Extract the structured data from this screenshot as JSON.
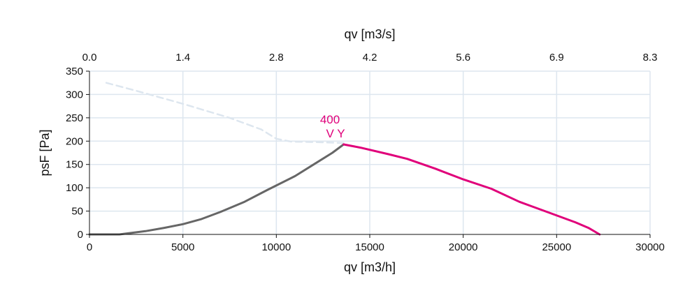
{
  "chart_data": {
    "type": "line",
    "xlabel": "qv [m3/h]",
    "x2label": "qv [m3/s]",
    "ylabel": "psF [Pa]",
    "xlim": [
      0,
      30000
    ],
    "ylim": [
      0,
      350
    ],
    "x_ticks": [
      "0",
      "5000",
      "10000",
      "15000",
      "20000",
      "25000",
      "30000"
    ],
    "x2_ticks": [
      "0.0",
      "1.4",
      "2.8",
      "4.2",
      "5.6",
      "6.9",
      "8.3"
    ],
    "y_ticks": [
      "0",
      "50",
      "100",
      "150",
      "200",
      "250",
      "300",
      "350"
    ],
    "grid": true,
    "colors": {
      "upper_curve": "#dde6ef",
      "system_curve": "#666666",
      "operating_curve": "#e0007a",
      "grid": "#dde6ef",
      "annotation": "#e0007a"
    },
    "annotation": {
      "line1": "400",
      "line2": "V Y",
      "x": 13600,
      "y": 193
    },
    "series": [
      {
        "style": "dashed",
        "color": "#dde6ef",
        "points": [
          [
            900,
            325
          ],
          [
            2500,
            308
          ],
          [
            5000,
            280
          ],
          [
            7500,
            250
          ],
          [
            9200,
            225
          ],
          [
            10000,
            205
          ],
          [
            10800,
            199
          ],
          [
            12000,
            198
          ],
          [
            13600,
            196
          ]
        ]
      },
      {
        "style": "solid",
        "color": "#666666",
        "points": [
          [
            0,
            0
          ],
          [
            1600,
            0
          ],
          [
            3000,
            7
          ],
          [
            4000,
            14
          ],
          [
            5000,
            22
          ],
          [
            6000,
            33
          ],
          [
            7000,
            48
          ],
          [
            8300,
            70
          ],
          [
            9500,
            95
          ],
          [
            11000,
            125
          ],
          [
            12000,
            150
          ],
          [
            13000,
            175
          ],
          [
            13600,
            193
          ]
        ]
      },
      {
        "style": "solid",
        "color": "#e0007a",
        "points": [
          [
            13600,
            193
          ],
          [
            14500,
            186
          ],
          [
            16000,
            172
          ],
          [
            17000,
            162
          ],
          [
            18500,
            141
          ],
          [
            20000,
            118
          ],
          [
            21500,
            98
          ],
          [
            23000,
            70
          ],
          [
            24500,
            48
          ],
          [
            26000,
            26
          ],
          [
            26700,
            14
          ],
          [
            27300,
            0
          ]
        ]
      }
    ]
  }
}
